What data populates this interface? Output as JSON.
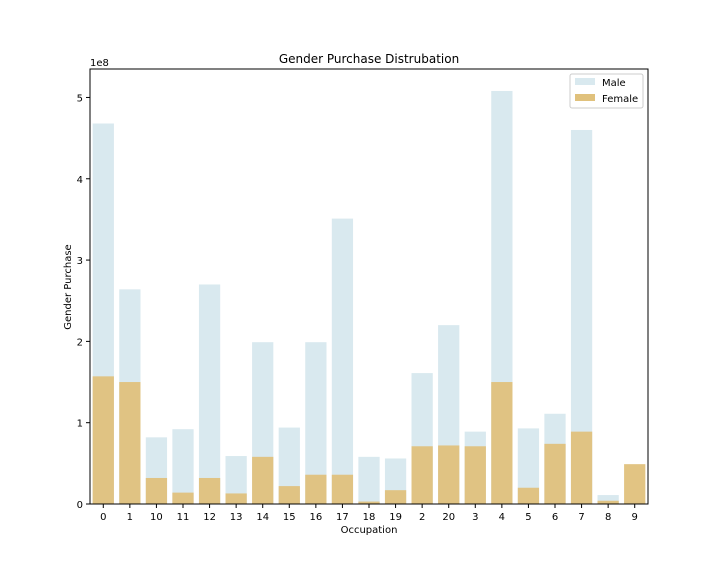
{
  "chart_data": {
    "type": "bar",
    "title": "Gender Purchase Distrubation",
    "xlabel": "Occupation",
    "ylabel": "Gender Purchase",
    "y_multiplier": "1e8",
    "ylim": [
      0,
      5.35
    ],
    "yticks": [
      0,
      1,
      2,
      3,
      4,
      5
    ],
    "legend_position": "top-right",
    "grid": false,
    "categories": [
      "0",
      "1",
      "10",
      "11",
      "12",
      "13",
      "14",
      "15",
      "16",
      "17",
      "18",
      "19",
      "2",
      "20",
      "3",
      "4",
      "5",
      "6",
      "7",
      "8",
      "9"
    ],
    "series": [
      {
        "name": "Male",
        "color": "#d9e9ef",
        "values": [
          4.68,
          2.64,
          0.82,
          0.92,
          2.7,
          0.59,
          1.99,
          0.94,
          1.99,
          3.51,
          0.58,
          0.56,
          1.61,
          2.2,
          0.89,
          5.08,
          0.93,
          1.11,
          4.6,
          0.11,
          0.04
        ]
      },
      {
        "name": "Female",
        "color": "#e0c17c",
        "values": [
          1.57,
          1.5,
          0.32,
          0.14,
          0.32,
          0.13,
          0.58,
          0.22,
          0.36,
          0.36,
          0.03,
          0.17,
          0.71,
          0.72,
          0.71,
          1.5,
          0.2,
          0.74,
          0.89,
          0.04,
          0.49
        ]
      }
    ]
  }
}
